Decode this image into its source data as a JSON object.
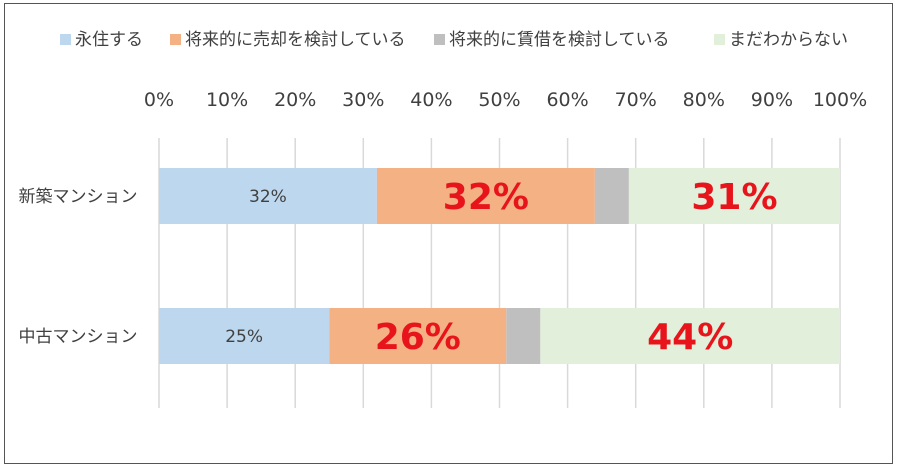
{
  "chart_data": {
    "type": "bar",
    "orientation": "horizontal",
    "stacked": true,
    "percent": true,
    "categories": [
      "新築マンション",
      "中古マンション"
    ],
    "series": [
      {
        "name": "永住する",
        "color": "#bdd7ee",
        "values": [
          32,
          25
        ],
        "labels": [
          "32%",
          "25%"
        ],
        "label_style": "small"
      },
      {
        "name": "将来的に売却を検討している",
        "color": "#f4b183",
        "values": [
          32,
          26
        ],
        "labels": [
          "32%",
          "26%"
        ],
        "label_style": "big"
      },
      {
        "name": "将来的に賃借を検討している",
        "color": "#bfbfbf",
        "values": [
          5,
          5
        ],
        "labels": [
          "",
          ""
        ],
        "label_style": "none"
      },
      {
        "name": "まだわからない",
        "color": "#e2efda",
        "values": [
          31,
          44
        ],
        "labels": [
          "31%",
          "44%"
        ],
        "label_style": "big"
      }
    ],
    "xlim": [
      0,
      100
    ],
    "ticks": [
      "0%",
      "10%",
      "20%",
      "30%",
      "40%",
      "50%",
      "60%",
      "70%",
      "80%",
      "90%",
      "100%"
    ],
    "grid": true,
    "legend_position": "top"
  }
}
